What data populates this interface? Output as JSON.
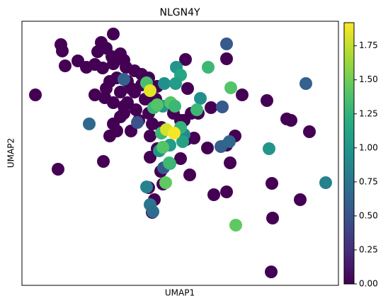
{
  "chart_data": {
    "type": "scatter",
    "title": "NLGN4Y",
    "x_label": "UMAP1",
    "y_label": "UMAP2",
    "colormap": "viridis",
    "clim": [
      0,
      1.92
    ],
    "cticks": [
      {
        "value": 0,
        "label": "0.00"
      },
      {
        "value": 0.25,
        "label": "0.25"
      },
      {
        "value": 0.5,
        "label": "0.50"
      },
      {
        "value": 0.75,
        "label": "0.75"
      },
      {
        "value": 1,
        "label": "1.00"
      },
      {
        "value": 1.25,
        "label": "1.25"
      },
      {
        "value": 1.5,
        "label": "1.50"
      },
      {
        "value": 1.75,
        "label": "1.75"
      }
    ],
    "xlim": [
      0,
      447
    ],
    "ylim": [
      0,
      373
    ],
    "x": [
      129,
      112,
      55,
      57,
      119,
      107,
      127,
      139,
      144,
      79,
      61,
      91,
      103,
      114,
      129,
      147,
      159,
      169,
      231,
      289,
      19,
      103,
      119,
      124,
      134,
      117,
      139,
      149,
      144,
      139,
      129,
      124,
      134,
      154,
      165,
      179,
      184,
      181,
      191,
      181,
      197,
      229,
      239,
      249,
      267,
      232,
      243,
      262,
      289,
      294,
      301,
      311,
      346,
      374,
      380,
      406,
      353,
      393,
      354,
      352,
      51,
      115,
      196,
      224,
      237,
      271,
      289,
      179,
      187,
      184,
      199,
      214,
      224,
      174,
      159,
      189,
      234,
      191,
      129,
      149,
      169,
      154,
      179,
      161,
      144,
      289,
      401,
      283,
      95,
      163,
      281,
      293,
      200,
      144,
      218,
      224,
      201,
      217,
      252,
      349,
      429,
      176,
      181,
      185,
      194,
      209,
      199,
      229,
      227,
      209,
      263,
      295,
      176,
      186,
      191,
      210,
      216,
      247,
      197,
      199,
      224,
      203,
      302,
      208,
      181,
      204,
      215
    ],
    "values": [
      355,
      343,
      340,
      331,
      335,
      330,
      323,
      327,
      318,
      317,
      310,
      308,
      312,
      307,
      313,
      308,
      303,
      298,
      319,
      320,
      269,
      269,
      278,
      288,
      293,
      265,
      273,
      258,
      243,
      238,
      228,
      211,
      218,
      218,
      233,
      243,
      228,
      211,
      193,
      181,
      223,
      233,
      243,
      243,
      251,
      206,
      208,
      194,
      198,
      173,
      211,
      269,
      261,
      235,
      233,
      217,
      144,
      121,
      95,
      19,
      164,
      175,
      161,
      179,
      156,
      128,
      132,
      138,
      121,
      103,
      143,
      243,
      233,
      263,
      273,
      263,
      278,
      281,
      258,
      288,
      283,
      278,
      293,
      248,
      253,
      341,
      285,
      252,
      228,
      230,
      196,
      203,
      166,
      291,
      308,
      297,
      285,
      285,
      264,
      193,
      145,
      139,
      114,
      104,
      190,
      172,
      253,
      213,
      203,
      198,
      308,
      279,
      286,
      251,
      255,
      258,
      253,
      248,
      215,
      195,
      223,
      145,
      85,
      173,
      275,
      220,
      215
    ],
    "expression": [
      0,
      0,
      0,
      0,
      0,
      0,
      0,
      0,
      0,
      0,
      0,
      0,
      0,
      0,
      0,
      0,
      0,
      0,
      0,
      0,
      0,
      0,
      0,
      0,
      0,
      0,
      0,
      0,
      0,
      0,
      0,
      0,
      0,
      0,
      0,
      0,
      0,
      0,
      0,
      0,
      0,
      0,
      0,
      0,
      0,
      0,
      0,
      0,
      0,
      0,
      0,
      0,
      0,
      0,
      0,
      0,
      0,
      0,
      0,
      0,
      0,
      0,
      0,
      0,
      0,
      0,
      0,
      0,
      0,
      0,
      0,
      0,
      0,
      0,
      0,
      0,
      0,
      0,
      0,
      0,
      0,
      0,
      0,
      0,
      0,
      0.55,
      0.6,
      0.55,
      0.65,
      0.5,
      0.6,
      0.65,
      0.55,
      0.6,
      1.0,
      1.15,
      0.95,
      1.05,
      0.95,
      1.0,
      0.85,
      0.85,
      0.75,
      0.7,
      1.0,
      1.2,
      1.0,
      0.9,
      1.1,
      1.05,
      1.3,
      1.4,
      1.35,
      1.3,
      1.4,
      1.4,
      1.3,
      1.3,
      1.3,
      1.4,
      1.25,
      1.45,
      1.45,
      1.3,
      1.85,
      1.8,
      1.9
    ]
  }
}
